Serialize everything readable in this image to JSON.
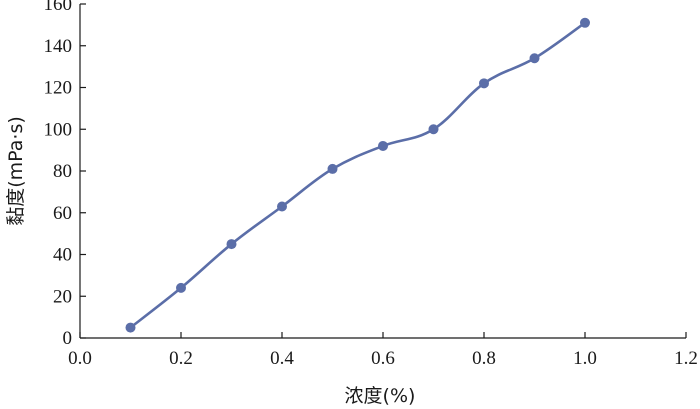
{
  "chart_data": {
    "type": "line",
    "xlabel": "浓度(%)",
    "ylabel": "黏度(mPa·s)",
    "xlim": [
      0.0,
      1.2
    ],
    "ylim": [
      0,
      160
    ],
    "xticks": [
      0.0,
      0.2,
      0.4,
      0.6,
      0.8,
      1.0,
      1.2
    ],
    "yticks": [
      0,
      20,
      40,
      60,
      80,
      100,
      120,
      140,
      160
    ],
    "xtick_labels": [
      "0.0",
      "0.2",
      "0.4",
      "0.6",
      "0.8",
      "1.0",
      "1.2"
    ],
    "ytick_labels": [
      "0",
      "20",
      "40",
      "60",
      "80",
      "100",
      "120",
      "140",
      "160"
    ],
    "grid": false,
    "series": [
      {
        "color": "#5b6ea8",
        "x": [
          0.1,
          0.2,
          0.3,
          0.4,
          0.5,
          0.6,
          0.7,
          0.8,
          0.9,
          1.0
        ],
        "y": [
          5,
          24,
          45,
          63,
          81,
          92,
          100,
          122,
          134,
          151
        ]
      }
    ]
  }
}
